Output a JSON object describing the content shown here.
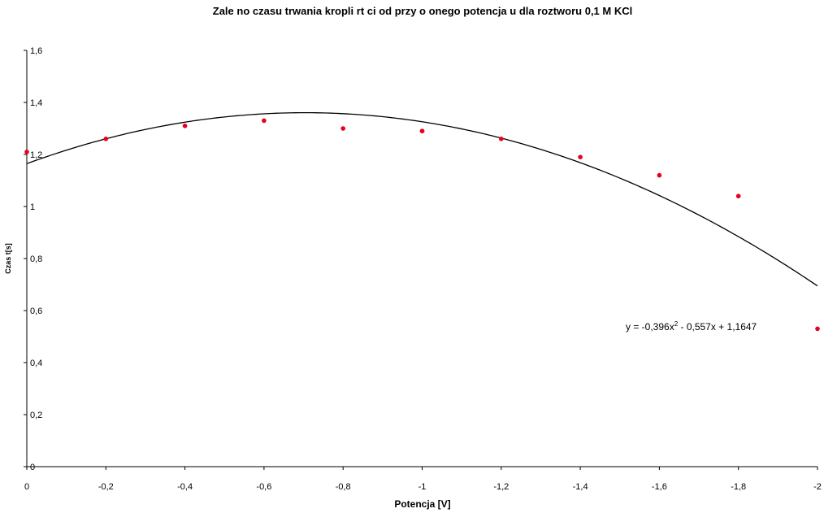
{
  "chart_data": {
    "type": "scatter",
    "title": "Zale no     czasu trwania kropli rt  ci od przy o  onego potencja u dla roztworu 0,1 M KCl",
    "xlabel": "Potencja  [V]",
    "ylabel": "Czas t[s]",
    "xlim": [
      0,
      -2
    ],
    "ylim": [
      0,
      1.6
    ],
    "x_ticks": [
      0,
      -0.2,
      -0.4,
      -0.6,
      -0.8,
      -1,
      -1.2,
      -1.4,
      -1.6,
      -1.8,
      -2
    ],
    "x_tick_labels": [
      "0",
      "-0,2",
      "-0,4",
      "-0,6",
      "-0,8",
      "-1",
      "-1,2",
      "-1,4",
      "-1,6",
      "-1,8",
      "-2"
    ],
    "y_ticks": [
      0,
      0.2,
      0.4,
      0.6,
      0.8,
      1,
      1.2,
      1.4,
      1.6
    ],
    "y_tick_labels": [
      "0",
      "0,2",
      "0,4",
      "0,6",
      "0,8",
      "1",
      "1,2",
      "1,4",
      "1,6"
    ],
    "grid": false,
    "series": [
      {
        "x": [
          0,
          -0.2,
          -0.4,
          -0.6,
          -0.8,
          -1.0,
          -1.0,
          -1.2,
          -1.4,
          -1.6,
          -1.8,
          -2.0
        ],
        "y": [
          1.21,
          1.26,
          1.31,
          1.33,
          1.3,
          1.29,
          1.29,
          1.26,
          1.19,
          1.12,
          1.04,
          0.53
        ],
        "color": "#e8001c"
      }
    ],
    "trendline": {
      "type": "polynomial",
      "coefficients": [
        -0.396,
        -0.557,
        1.1647
      ],
      "color": "#000000",
      "equation": {
        "prefix": "y = -0,396x",
        "superscript": "2",
        "suffix": " - 0,557x + 1,1647"
      }
    }
  }
}
